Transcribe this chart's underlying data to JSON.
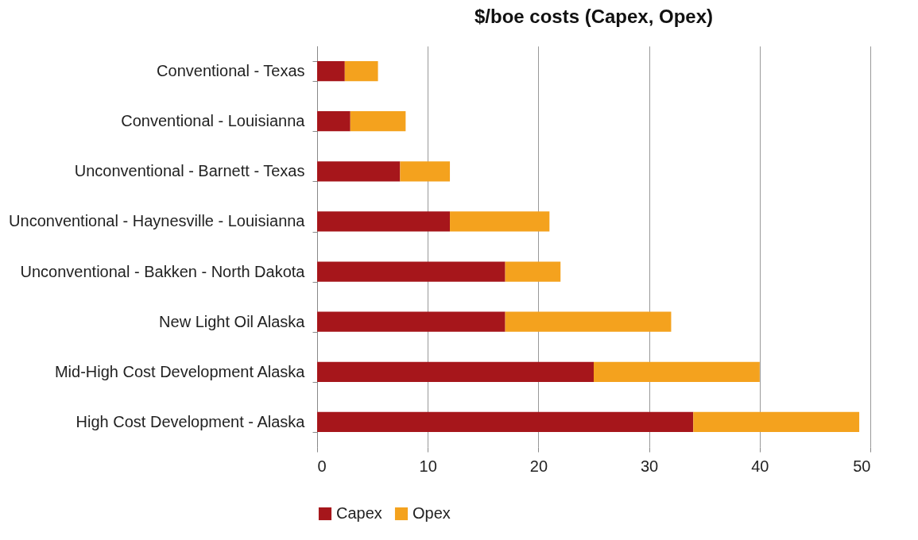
{
  "chart_data": {
    "type": "bar",
    "title": "$/boe costs (Capex, Opex)",
    "orientation": "horizontal",
    "stacked": true,
    "categories": [
      "Conventional - Texas",
      "Conventional - Louisianna",
      "Unconventional - Barnett - Texas",
      "Unconventional - Haynesville - Louisianna",
      "Unconventional - Bakken - North Dakota",
      "New Light Oil Alaska",
      "Mid-High Cost Development Alaska",
      "High Cost Development - Alaska"
    ],
    "series": [
      {
        "name": "Capex",
        "color": "#a6161b",
        "values": [
          2.5,
          3,
          7.5,
          12,
          17,
          17,
          25,
          34
        ]
      },
      {
        "name": "Opex",
        "color": "#f4a21e",
        "values": [
          3,
          5,
          4.5,
          9,
          5,
          15,
          15,
          15
        ]
      }
    ],
    "xlim": [
      0,
      50
    ],
    "xticks": [
      0,
      10,
      20,
      30,
      40,
      50
    ],
    "grid": "x",
    "legend": "bottom"
  }
}
